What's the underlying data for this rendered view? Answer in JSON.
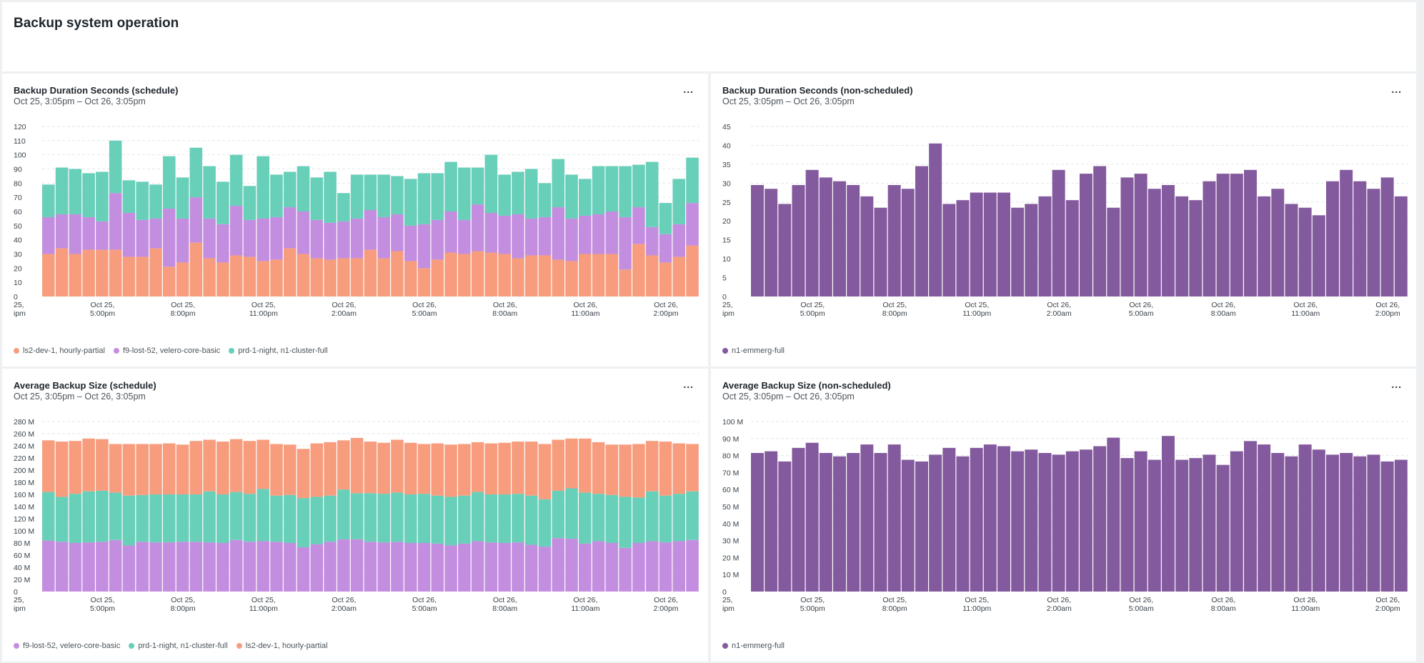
{
  "page": {
    "title": "Backup system operation"
  },
  "menu_label": "...",
  "panels": [
    {
      "title": "Backup Duration Seconds (schedule)",
      "subtitle": "Oct 25, 3:05pm – Oct 26, 3:05pm",
      "legend": [
        {
          "name": "ls2-dev-1, hourly-partial",
          "color": "#f79d7e"
        },
        {
          "name": "f9-lost-52, velero-core-basic",
          "color": "#c48ee0"
        },
        {
          "name": "prd-1-night, n1-cluster-full",
          "color": "#68cfb9"
        }
      ]
    },
    {
      "title": "Backup Duration Seconds (non-scheduled)",
      "subtitle": "Oct 25, 3:05pm – Oct 26, 3:05pm",
      "legend": [
        {
          "name": "n1-emmerg-full",
          "color": "#845a9e"
        }
      ]
    },
    {
      "title": "Average Backup Size (schedule)",
      "subtitle": "Oct 25, 3:05pm – Oct 26, 3:05pm",
      "legend": [
        {
          "name": "f9-lost-52, velero-core-basic",
          "color": "#c48ee0"
        },
        {
          "name": "prd-1-night, n1-cluster-full",
          "color": "#68cfb9"
        },
        {
          "name": "ls2-dev-1, hourly-partial",
          "color": "#f79d7e"
        }
      ]
    },
    {
      "title": "Average Backup Size (non-scheduled)",
      "subtitle": "Oct 25, 3:05pm – Oct 26, 3:05pm",
      "legend": [
        {
          "name": "n1-emmerg-full",
          "color": "#845a9e"
        }
      ]
    }
  ],
  "chart_data": [
    {
      "type": "bar",
      "stacked": true,
      "ylim": [
        0,
        120
      ],
      "yticks": [
        "0",
        "10",
        "20",
        "30",
        "40",
        "50",
        "60",
        "70",
        "80",
        "90",
        "100",
        "110",
        "120"
      ],
      "xticks": [
        {
          "line1": "25,",
          "line2": "ipm",
          "index": 0
        },
        {
          "line1": "Oct 25,",
          "line2": "5:00pm",
          "index": 4
        },
        {
          "line1": "Oct 25,",
          "line2": "8:00pm",
          "index": 10
        },
        {
          "line1": "Oct 25,",
          "line2": "11:00pm",
          "index": 16
        },
        {
          "line1": "Oct 26,",
          "line2": "2:00am",
          "index": 22
        },
        {
          "line1": "Oct 26,",
          "line2": "5:00am",
          "index": 28
        },
        {
          "line1": "Oct 26,",
          "line2": "8:00am",
          "index": 34
        },
        {
          "line1": "Oct 26,",
          "line2": "11:00am",
          "index": 40
        },
        {
          "line1": "Oct 26,",
          "line2": "2:00pm",
          "index": 46
        }
      ],
      "series": [
        {
          "name": "ls2-dev-1, hourly-partial",
          "color": "#f79d7e",
          "values": [
            30,
            34,
            30,
            33,
            33,
            33,
            28,
            28,
            34,
            21,
            24,
            38,
            27,
            24,
            29,
            28,
            25,
            26,
            34,
            30,
            27,
            26,
            27,
            27,
            33,
            27,
            32,
            25,
            20,
            26,
            31,
            30,
            32,
            31,
            30,
            27,
            29,
            29,
            26,
            25,
            30,
            30,
            30,
            19,
            37,
            29,
            24,
            28,
            36
          ]
        },
        {
          "name": "f9-lost-52, velero-core-basic",
          "color": "#c48ee0",
          "values": [
            26,
            24,
            28,
            23,
            20,
            40,
            31,
            26,
            21,
            41,
            31,
            32,
            28,
            27,
            35,
            26,
            30,
            30,
            29,
            30,
            27,
            26,
            26,
            28,
            28,
            29,
            26,
            25,
            31,
            28,
            29,
            24,
            33,
            28,
            27,
            31,
            26,
            27,
            37,
            30,
            27,
            28,
            30,
            37,
            26,
            20,
            20,
            23,
            30
          ]
        },
        {
          "name": "prd-1-night, n1-cluster-full",
          "color": "#68cfb9",
          "values": [
            23,
            33,
            32,
            31,
            35,
            37,
            23,
            27,
            24,
            37,
            29,
            35,
            37,
            30,
            36,
            24,
            44,
            30,
            25,
            32,
            30,
            36,
            20,
            31,
            25,
            30,
            27,
            33,
            36,
            33,
            35,
            37,
            26,
            41,
            29,
            30,
            35,
            24,
            34,
            31,
            26,
            34,
            32,
            36,
            30,
            46,
            22,
            32,
            32
          ]
        }
      ]
    },
    {
      "type": "bar",
      "ylim": [
        0,
        45
      ],
      "yticks": [
        "0",
        "5",
        "10",
        "15",
        "20",
        "25",
        "30",
        "35",
        "40",
        "45"
      ],
      "xticks": [
        {
          "line1": "25,",
          "line2": "ipm",
          "index": 0
        },
        {
          "line1": "Oct 25,",
          "line2": "5:00pm",
          "index": 4
        },
        {
          "line1": "Oct 25,",
          "line2": "8:00pm",
          "index": 10
        },
        {
          "line1": "Oct 25,",
          "line2": "11:00pm",
          "index": 16
        },
        {
          "line1": "Oct 26,",
          "line2": "2:00am",
          "index": 22
        },
        {
          "line1": "Oct 26,",
          "line2": "5:00am",
          "index": 28
        },
        {
          "line1": "Oct 26,",
          "line2": "8:00am",
          "index": 34
        },
        {
          "line1": "Oct 26,",
          "line2": "11:00am",
          "index": 40
        },
        {
          "line1": "Oct 26,",
          "line2": "2:00pm",
          "index": 46
        }
      ],
      "series": [
        {
          "name": "n1-emmerg-full",
          "color": "#845a9e",
          "values": [
            29.5,
            28.5,
            24.5,
            29.5,
            33.5,
            31.5,
            30.5,
            29.5,
            26.5,
            23.5,
            29.5,
            28.5,
            34.5,
            40.5,
            24.5,
            25.5,
            27.5,
            27.5,
            27.5,
            23.5,
            24.5,
            26.5,
            33.5,
            25.5,
            32.5,
            34.5,
            23.5,
            31.5,
            32.5,
            28.5,
            29.5,
            26.5,
            25.5,
            30.5,
            32.5,
            32.5,
            33.5,
            26.5,
            28.5,
            24.5,
            23.5,
            21.5,
            30.5,
            33.5,
            30.5,
            28.5,
            31.5,
            26.5
          ]
        }
      ]
    },
    {
      "type": "bar",
      "stacked": true,
      "ylim": [
        0,
        280
      ],
      "unit": "M",
      "yticks": [
        "0",
        "20 M",
        "40 M",
        "60 M",
        "80 M",
        "100 M",
        "120 M",
        "140 M",
        "160 M",
        "180 M",
        "200 M",
        "220 M",
        "240 M",
        "260 M",
        "280 M"
      ],
      "xticks": [
        {
          "line1": "25,",
          "line2": "ipm",
          "index": 0
        },
        {
          "line1": "Oct 25,",
          "line2": "5:00pm",
          "index": 4
        },
        {
          "line1": "Oct 25,",
          "line2": "8:00pm",
          "index": 10
        },
        {
          "line1": "Oct 25,",
          "line2": "11:00pm",
          "index": 16
        },
        {
          "line1": "Oct 26,",
          "line2": "2:00am",
          "index": 22
        },
        {
          "line1": "Oct 26,",
          "line2": "5:00am",
          "index": 28
        },
        {
          "line1": "Oct 26,",
          "line2": "8:00am",
          "index": 34
        },
        {
          "line1": "Oct 26,",
          "line2": "11:00am",
          "index": 40
        },
        {
          "line1": "Oct 26,",
          "line2": "2:00pm",
          "index": 46
        }
      ],
      "series": [
        {
          "name": "f9-lost-52, velero-core-basic",
          "color": "#c48ee0",
          "values": [
            84,
            82,
            80,
            81,
            82,
            85,
            76,
            82,
            81,
            81,
            82,
            82,
            81,
            80,
            85,
            82,
            83,
            82,
            80,
            73,
            78,
            82,
            86,
            86,
            82,
            81,
            82,
            80,
            80,
            79,
            76,
            79,
            83,
            81,
            80,
            81,
            77,
            74,
            88,
            87,
            79,
            83,
            80,
            72,
            80,
            83,
            81,
            83,
            85
          ]
        },
        {
          "name": "prd-1-night, n1-cluster-full",
          "color": "#68cfb9",
          "values": [
            80,
            74,
            81,
            84,
            84,
            78,
            82,
            77,
            79,
            79,
            78,
            78,
            84,
            80,
            79,
            79,
            86,
            76,
            79,
            81,
            78,
            76,
            82,
            76,
            80,
            80,
            81,
            80,
            81,
            79,
            80,
            79,
            81,
            79,
            80,
            80,
            81,
            78,
            78,
            83,
            84,
            78,
            79,
            84,
            75,
            82,
            77,
            78,
            80
          ]
        },
        {
          "name": "ls2-dev-1, hourly-partial",
          "color": "#f79d7e",
          "values": [
            85,
            91,
            87,
            87,
            85,
            80,
            85,
            84,
            83,
            84,
            82,
            88,
            85,
            87,
            87,
            87,
            81,
            85,
            83,
            81,
            88,
            88,
            81,
            91,
            85,
            84,
            87,
            85,
            82,
            86,
            86,
            85,
            82,
            84,
            85,
            86,
            89,
            91,
            84,
            82,
            89,
            85,
            83,
            86,
            88,
            83,
            89,
            83,
            78
          ]
        }
      ]
    },
    {
      "type": "bar",
      "ylim": [
        0,
        100
      ],
      "unit": "M",
      "yticks": [
        "0",
        "10 M",
        "20 M",
        "30 M",
        "40 M",
        "50 M",
        "60 M",
        "70 M",
        "80 M",
        "90 M",
        "100 M"
      ],
      "xticks": [
        {
          "line1": "25,",
          "line2": "ipm",
          "index": 0
        },
        {
          "line1": "Oct 25,",
          "line2": "5:00pm",
          "index": 4
        },
        {
          "line1": "Oct 25,",
          "line2": "8:00pm",
          "index": 10
        },
        {
          "line1": "Oct 25,",
          "line2": "11:00pm",
          "index": 16
        },
        {
          "line1": "Oct 26,",
          "line2": "2:00am",
          "index": 22
        },
        {
          "line1": "Oct 26,",
          "line2": "5:00am",
          "index": 28
        },
        {
          "line1": "Oct 26,",
          "line2": "8:00am",
          "index": 34
        },
        {
          "line1": "Oct 26,",
          "line2": "11:00am",
          "index": 40
        },
        {
          "line1": "Oct 26,",
          "line2": "2:00pm",
          "index": 46
        }
      ],
      "series": [
        {
          "name": "n1-emmerg-full",
          "color": "#845a9e",
          "values": [
            81.5,
            82.5,
            76.5,
            84.5,
            87.5,
            81.5,
            79.5,
            81.5,
            86.5,
            81.5,
            86.5,
            77.5,
            76.5,
            80.5,
            84.5,
            79.5,
            84.5,
            86.5,
            85.5,
            82.5,
            83.5,
            81.5,
            80.5,
            82.5,
            83.5,
            85.5,
            90.5,
            78.5,
            82.5,
            77.5,
            91.5,
            77.5,
            78.5,
            80.5,
            74.5,
            82.5,
            88.5,
            86.5,
            81.5,
            79.5,
            86.5,
            83.5,
            80.5,
            81.5,
            79.5,
            80.5,
            76.5,
            77.5
          ]
        }
      ]
    }
  ]
}
